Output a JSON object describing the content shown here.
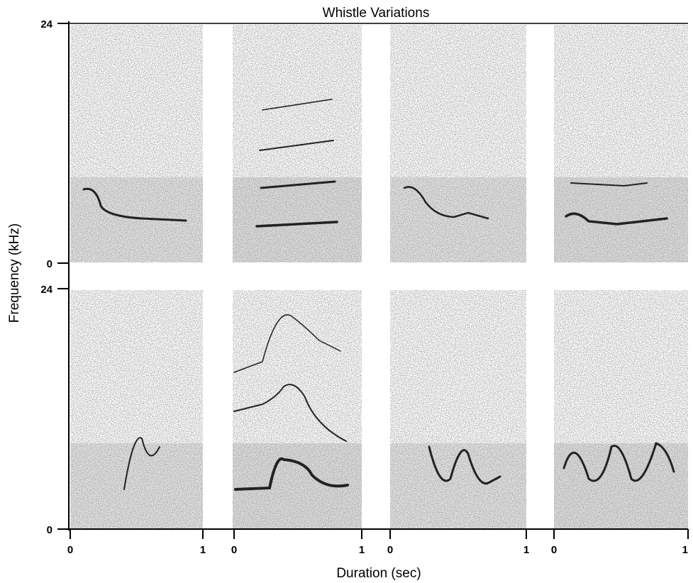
{
  "title": "Whistle Variations",
  "y_axis": {
    "label": "Frequency (kHz)",
    "rows": [
      {
        "ticks": [
          "24",
          "0"
        ]
      },
      {
        "ticks": [
          "24",
          "0"
        ]
      }
    ]
  },
  "x_axis": {
    "label": "Duration (sec)",
    "panels": [
      {
        "ticks": [
          "0",
          "1"
        ]
      },
      {
        "ticks": [
          "0",
          "1"
        ]
      },
      {
        "ticks": [
          "0",
          "1"
        ]
      },
      {
        "ticks": [
          "0",
          "1"
        ]
      }
    ]
  }
}
